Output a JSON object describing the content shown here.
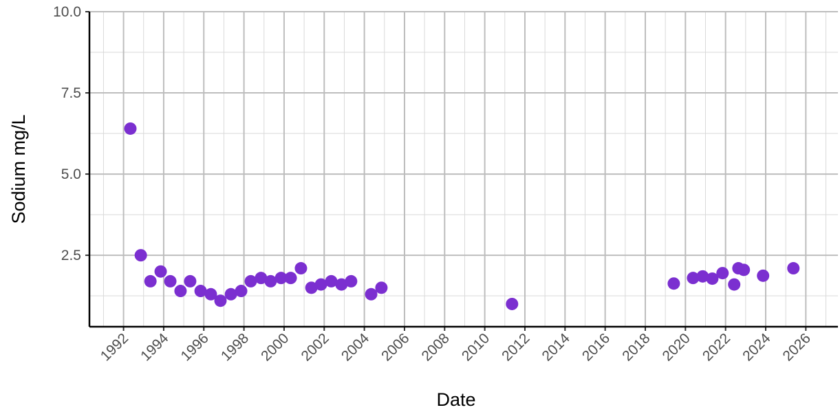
{
  "chart_data": {
    "type": "scatter",
    "x_label": "Date",
    "y_label": "Sodium mg/L",
    "series": [
      {
        "color": "#7b2fd0",
        "x": [
          1992.34,
          1992.86,
          1993.34,
          1993.85,
          1994.33,
          1994.84,
          1995.32,
          1995.84,
          1996.35,
          1996.83,
          1997.35,
          1997.86,
          1998.34,
          1998.85,
          1999.33,
          1999.85,
          2000.33,
          2000.84,
          2001.36,
          2001.84,
          2002.35,
          2002.86,
          2003.34,
          2004.34,
          2004.85,
          2011.36,
          2019.42,
          2020.38,
          2020.86,
          2021.34,
          2021.85,
          2022.43,
          2022.64,
          2022.91,
          2023.87,
          2025.38
        ],
        "values": [
          6.4,
          2.5,
          1.7,
          2.0,
          1.7,
          1.4,
          1.7,
          1.4,
          1.3,
          1.1,
          1.3,
          1.4,
          1.7,
          1.8,
          1.7,
          1.8,
          1.8,
          2.1,
          1.5,
          1.6,
          1.7,
          1.6,
          1.7,
          1.3,
          1.5,
          1.0,
          1.63,
          1.8,
          1.85,
          1.78,
          1.95,
          1.6,
          2.1,
          2.05,
          1.87,
          2.1
        ]
      }
    ],
    "xlim": [
      1990.3,
      2027.6
    ],
    "xticks": [
      1992,
      1994,
      1996,
      1998,
      2000,
      2002,
      2004,
      2006,
      2008,
      2010,
      2012,
      2014,
      2016,
      2018,
      2020,
      2022,
      2024,
      2026
    ],
    "ylim": [
      0.3,
      10
    ],
    "yticks": [
      {
        "value": 2.5,
        "label": "2.5"
      },
      {
        "value": 5,
        "label": "5.0"
      },
      {
        "value": 7.5,
        "label": "7.5"
      },
      {
        "value": 10,
        "label": "10.0"
      }
    ],
    "grid": true
  }
}
